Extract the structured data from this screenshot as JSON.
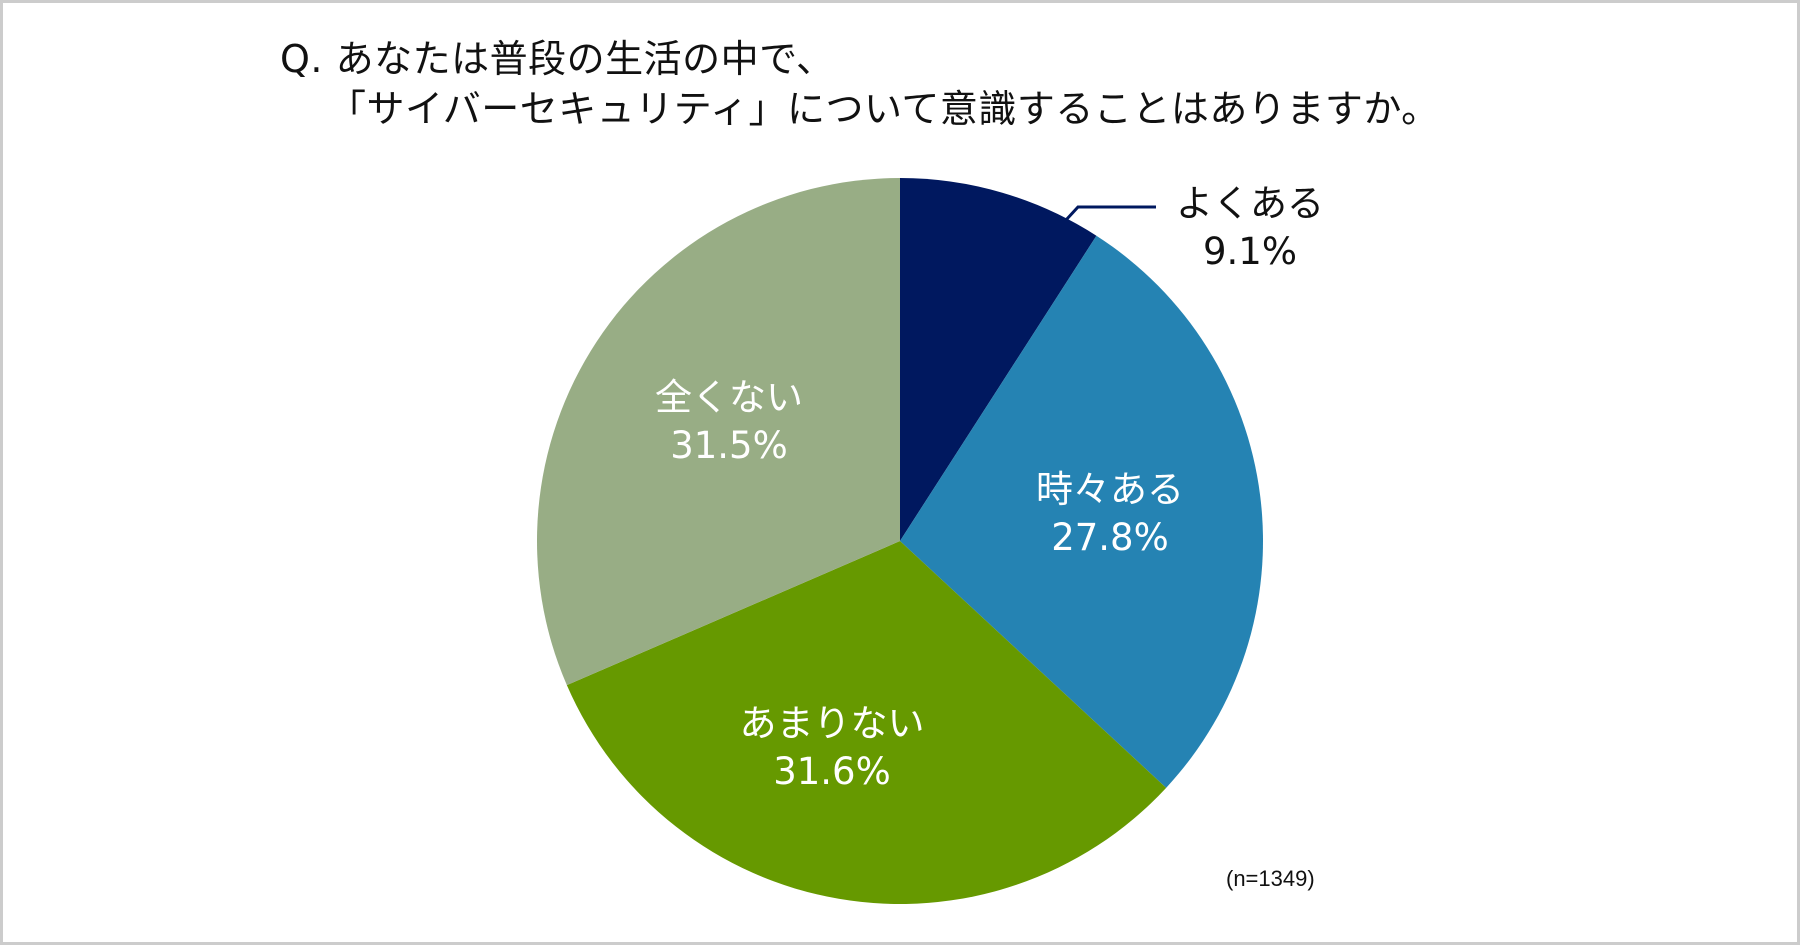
{
  "title": {
    "line1": "Q. あなたは普段の生活の中で、",
    "line2": "「サイバーセキュリティ」について意識することはありますか。"
  },
  "sample_note": "(n=1349)",
  "colors": {
    "よくある": "#00185f",
    "時々ある": "#2583b3",
    "あまりない": "#669900",
    "全くない": "#98ad85",
    "border": "#cccccc",
    "leader_line": "#00185f"
  },
  "labels": [
    {
      "name": "よくある",
      "value": "9.1%"
    },
    {
      "name": "時々ある",
      "value": "27.8%"
    },
    {
      "name": "あまりない",
      "value": "31.6%"
    },
    {
      "name": "全くない",
      "value": "31.5%"
    }
  ],
  "chart_data": {
    "type": "pie",
    "title": "Q. あなたは普段の生活の中で、「サイバーセキュリティ」について意識することはありますか。",
    "categories": [
      "よくある",
      "時々ある",
      "あまりない",
      "全くない"
    ],
    "values": [
      9.1,
      27.8,
      31.6,
      31.5
    ],
    "unit": "%",
    "start_angle": "12 o'clock",
    "direction": "clockwise",
    "colors": [
      "#00185f",
      "#2583b3",
      "#669900",
      "#98ad85"
    ],
    "annotations": [
      "(n=1349)"
    ],
    "legend": "none (direct labels)"
  }
}
